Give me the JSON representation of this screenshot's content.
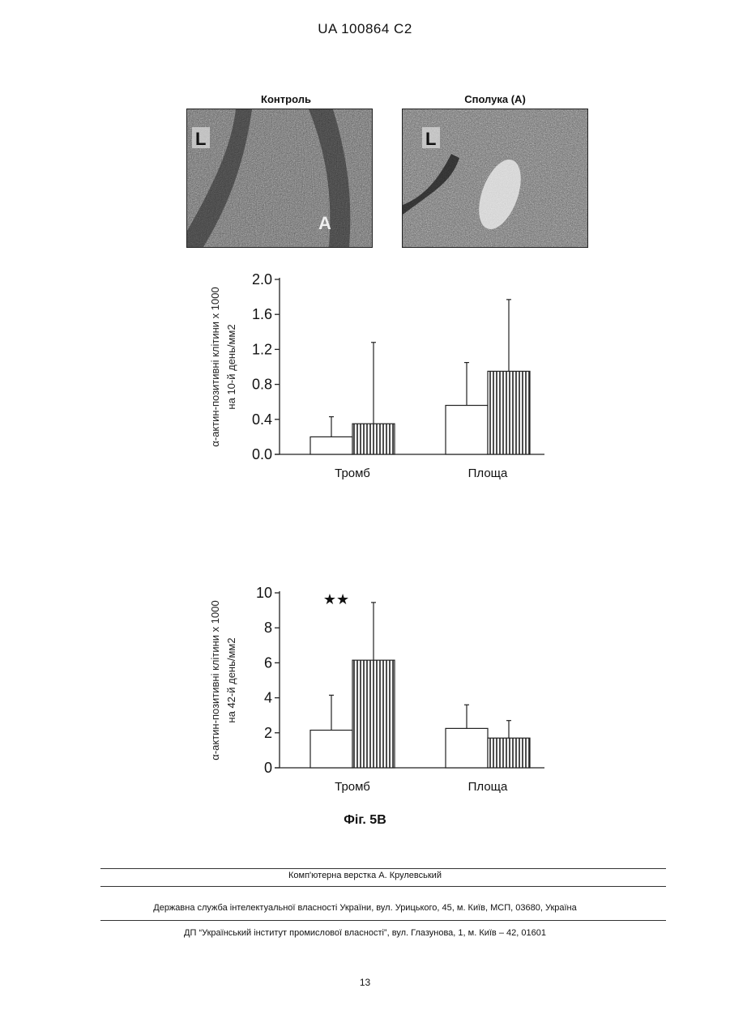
{
  "header": {
    "text": "UA   100864   C2"
  },
  "micrographs": [
    {
      "label": "Контроль",
      "marks": [
        "L",
        "A"
      ]
    },
    {
      "label": "Сполука (А)",
      "marks": [
        "L"
      ]
    }
  ],
  "chart_data": [
    {
      "type": "bar",
      "ylabel_line1": "α-актин-позитивні клітини x 1000",
      "ylabel_line2": "на 10-й день/мм2",
      "categories": [
        "Тромб",
        "Площа"
      ],
      "ylim": [
        0,
        2.0
      ],
      "yticks": [
        "0.0",
        "0.4",
        "0.8",
        "1.2",
        "1.6",
        "2.0"
      ],
      "ytick_values": [
        0,
        0.4,
        0.8,
        1.2,
        1.6,
        2.0
      ],
      "series": [
        {
          "style": "open",
          "values": [
            0.2,
            0.56
          ],
          "errors": [
            0.23,
            0.49
          ]
        },
        {
          "style": "hatched",
          "values": [
            0.35,
            0.95
          ],
          "errors": [
            0.93,
            0.82
          ]
        }
      ],
      "annotation": ""
    },
    {
      "type": "bar",
      "ylabel_line1": "α-актин-позитивні клітини x 1000",
      "ylabel_line2": "на 42-й день/мм2",
      "categories": [
        "Тромб",
        "Площа"
      ],
      "ylim": [
        0,
        10
      ],
      "yticks": [
        "0",
        "2",
        "4",
        "6",
        "8",
        "10"
      ],
      "ytick_values": [
        0,
        2,
        4,
        6,
        8,
        10
      ],
      "series": [
        {
          "style": "open",
          "values": [
            2.15,
            2.25
          ],
          "errors": [
            2.0,
            1.35
          ]
        },
        {
          "style": "hatched",
          "values": [
            6.15,
            1.7
          ],
          "errors": [
            3.3,
            1.0
          ]
        }
      ],
      "annotation": "★★"
    }
  ],
  "figure_caption": "Фіг. 5В",
  "footer": {
    "layout_credit": "Комп'ютерна верстка А. Крулевський",
    "agency": "Державна служба інтелектуальної власності України, вул. Урицького, 45, м. Київ, МСП, 03680, Україна",
    "institute": "ДП “Український інститут промислової власності”, вул. Глазунова, 1, м. Київ – 42, 01601"
  },
  "page_number": "13"
}
